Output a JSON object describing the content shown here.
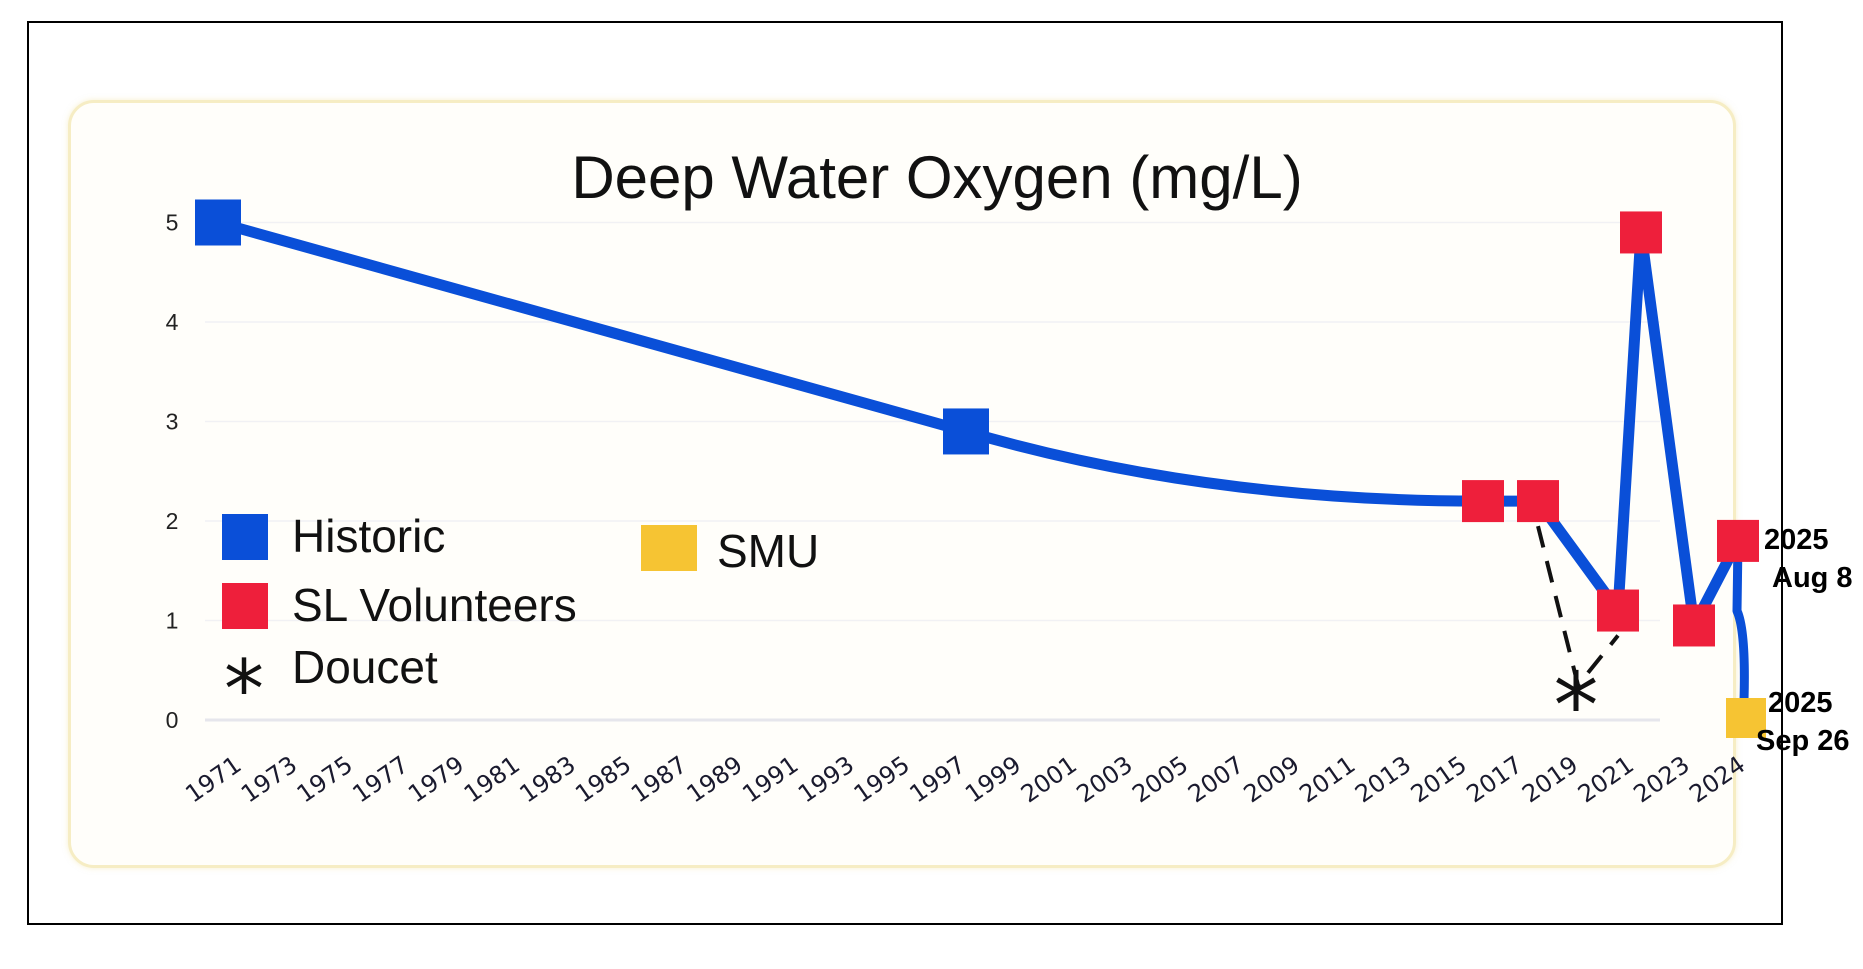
{
  "chart_data": {
    "type": "line",
    "title": "Deep Water Oxygen (mg/L)",
    "xlabel": "",
    "ylabel": "",
    "ylim": [
      0,
      5
    ],
    "y_ticks": [
      "0",
      "1",
      "2",
      "3",
      "4",
      "5"
    ],
    "x_tick_labels": [
      "1971",
      "1973",
      "1975",
      "1977",
      "1979",
      "1981",
      "1983",
      "1985",
      "1987",
      "1989",
      "1991",
      "1993",
      "1995",
      "1997",
      "1999",
      "2001",
      "2003",
      "2005",
      "2007",
      "2009",
      "2011",
      "2013",
      "2015",
      "2017",
      "2019",
      "2021",
      "2023",
      "2024"
    ],
    "series": [
      {
        "name": "Historic",
        "color": "#0a4fd8",
        "points": [
          {
            "x": "1971",
            "y": 5.0
          },
          {
            "x": "1998",
            "y": 2.9
          }
        ]
      },
      {
        "name": "SL Volunteers",
        "color": "#ee1f3b",
        "points": [
          {
            "x": "2017",
            "y": 2.2
          },
          {
            "x": "2019",
            "y": 2.2
          },
          {
            "x": "2022",
            "y": 1.1
          },
          {
            "x": "2023",
            "y": 4.9
          },
          {
            "x": "2024",
            "y": 0.95
          },
          {
            "x": "2025 Aug 8",
            "y": 1.8
          }
        ]
      },
      {
        "name": "Doucet",
        "color": "#111111",
        "points": [
          {
            "x": "2021",
            "y": 0.35
          }
        ]
      },
      {
        "name": "SMU",
        "color": "#f6c433",
        "points": [
          {
            "x": "2025 Sep 26",
            "y": 0.0
          }
        ]
      }
    ],
    "annotations": [
      {
        "line1": "2025",
        "line2": "Aug 8"
      },
      {
        "line1": "2025",
        "line2": "Sep 26"
      }
    ],
    "legend": [
      {
        "label": "Historic",
        "marker": "square",
        "color": "#0a4fd8"
      },
      {
        "label": "SL Volunteers",
        "marker": "square",
        "color": "#ee1f3b"
      },
      {
        "label": "Doucet",
        "marker": "asterisk",
        "color": "#111111"
      },
      {
        "label": "SMU",
        "marker": "square",
        "color": "#f6c433"
      }
    ],
    "line_color": "#0a4fd8"
  }
}
